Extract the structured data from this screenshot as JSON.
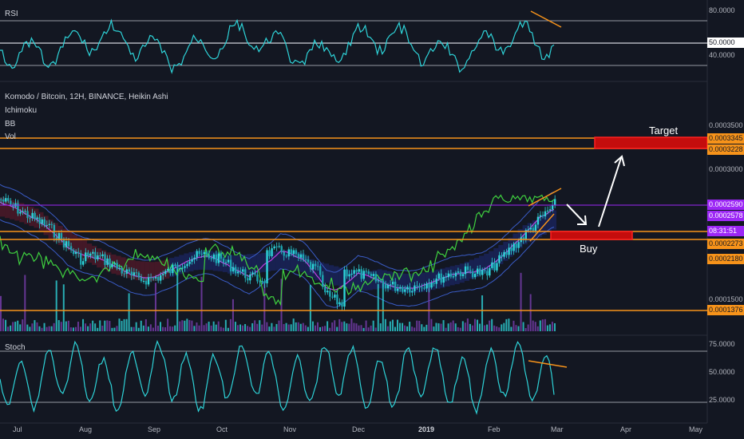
{
  "panels": {
    "rsi_title": "RSI",
    "main_title": "Komodo / Bitcoin, 12H, BINANCE, Heikin Ashi",
    "indicators": [
      "Ichimoku",
      "BB",
      "Vol"
    ],
    "stoch_title": "Stoch"
  },
  "annotations": {
    "target_label": "Target",
    "buy_label": "Buy"
  },
  "colors": {
    "background": "#131722",
    "cyan": "#2ed3d8",
    "orange": "#f7931a",
    "red_box": "#e01010",
    "purple_tag": "#9c27f5",
    "green": "#3fd13f",
    "magenta": "#c040e0"
  },
  "chart_data": [
    {
      "type": "line",
      "name": "RSI panel",
      "ticks": [
        "80.0000",
        "50.0000",
        "40.0000"
      ],
      "ylim": [
        20,
        85
      ],
      "levels": [
        80,
        70,
        50,
        30
      ]
    },
    {
      "type": "candlestick",
      "name": "Main price panel",
      "ticks": [
        "0.0003500",
        "0.0003000",
        "0.0001500"
      ],
      "price_tags": [
        {
          "value": "0.0003345",
          "color": "orange"
        },
        {
          "value": "0.0003228",
          "color": "orange"
        },
        {
          "value": "0.0002590",
          "color": "purple"
        },
        {
          "value": "0.0002578",
          "color": "purple"
        },
        {
          "value": "08:31:51",
          "color": "purple"
        },
        {
          "value": "0.0002273",
          "color": "orange"
        },
        {
          "value": "0.0002180",
          "color": "orange"
        },
        {
          "value": "0.0001376",
          "color": "orange"
        }
      ],
      "ylim": [
        0.00011,
        0.00038
      ],
      "horizontal_levels": [
        0.0003345,
        0.0003228,
        0.0002273,
        0.000218,
        0.0001376
      ],
      "x_months": [
        "Jul",
        "Aug",
        "Sep",
        "Oct",
        "Nov",
        "Dec",
        "2019",
        "Feb",
        "Mar",
        "Apr",
        "May"
      ]
    },
    {
      "type": "line",
      "name": "Stoch panel",
      "ticks": [
        "75.0000",
        "50.0000",
        "25.0000"
      ],
      "ylim": [
        5,
        95
      ],
      "levels": [
        80,
        20
      ]
    }
  ]
}
